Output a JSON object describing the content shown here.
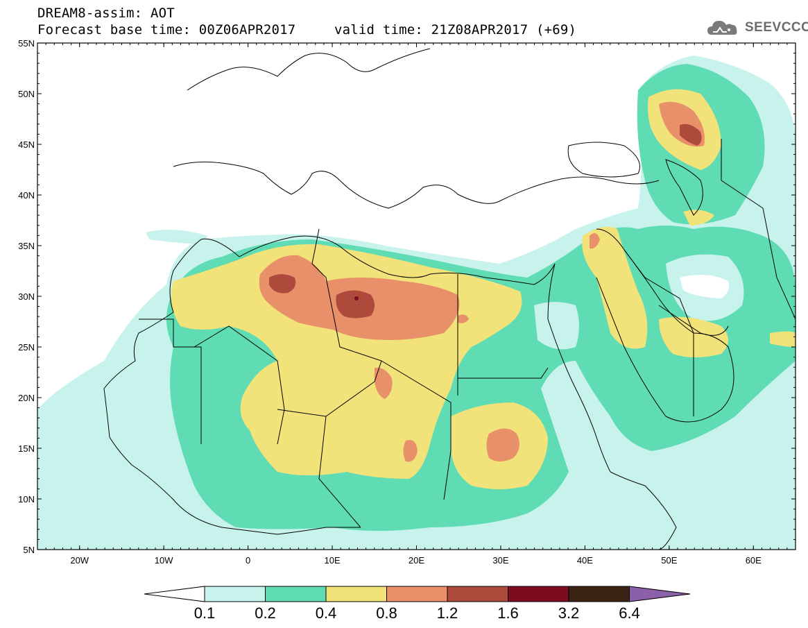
{
  "header": {
    "title": "DREAM8-assim: AOT",
    "base_time": "Forecast base time: 00Z06APR2017",
    "valid_time": "valid time: 21Z08APR2017 (+69)"
  },
  "logo": {
    "text": "SEEVCCC",
    "icon": "cloud-icon"
  },
  "map": {
    "lat_labels": [
      "55N",
      "50N",
      "45N",
      "40N",
      "35N",
      "30N",
      "25N",
      "20N",
      "15N",
      "10N",
      "5N"
    ],
    "lon_labels": [
      "20W",
      "10W",
      "0",
      "10E",
      "20E",
      "30E",
      "40E",
      "50E",
      "60E"
    ],
    "lat_range": [
      5,
      55
    ],
    "lon_range": [
      -25,
      65
    ]
  },
  "colorbar": {
    "levels": [
      "0.1",
      "0.2",
      "0.4",
      "0.8",
      "1.2",
      "1.6",
      "3.2",
      "6.4"
    ],
    "colors": [
      "#c8f2ec",
      "#5fdcb4",
      "#f2e27a",
      "#e8906a",
      "#ae4a3c",
      "#7c0c20",
      "#3a2414",
      "#8c60a8"
    ],
    "under_color": "#ffffff",
    "over_color": "#8c60a8"
  }
}
